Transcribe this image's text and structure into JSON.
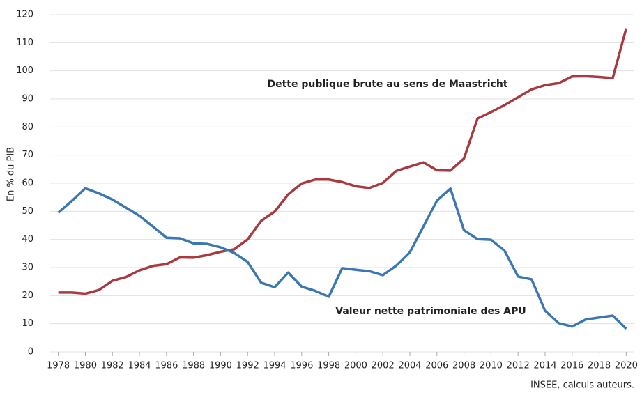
{
  "chart_data": {
    "type": "line",
    "y_label": "En % du PIB",
    "source": "INSEE, calculs auteurs.",
    "x": [
      1978,
      1979,
      1980,
      1981,
      1982,
      1983,
      1984,
      1985,
      1986,
      1987,
      1988,
      1989,
      1990,
      1991,
      1992,
      1993,
      1994,
      1995,
      1996,
      1997,
      1998,
      1999,
      2000,
      2001,
      2002,
      2003,
      2004,
      2005,
      2006,
      2007,
      2008,
      2009,
      2010,
      2011,
      2012,
      2013,
      2014,
      2015,
      2016,
      2017,
      2018,
      2019,
      2020
    ],
    "series": [
      {
        "name": "Dette publique brute au sens de Maastricht",
        "color": "#a83a3f",
        "values": [
          21.1,
          21.1,
          20.7,
          22.0,
          25.3,
          26.6,
          29.0,
          30.6,
          31.2,
          33.6,
          33.5,
          34.4,
          35.6,
          36.5,
          40.0,
          46.6,
          49.9,
          56.0,
          59.9,
          61.3,
          61.3,
          60.4,
          58.9,
          58.3,
          60.1,
          64.4,
          65.9,
          67.4,
          64.6,
          64.5,
          68.8,
          83.0,
          85.3,
          87.8,
          90.6,
          93.4,
          94.9,
          95.6,
          98.0,
          98.1,
          97.8,
          97.4,
          115.1
        ]
      },
      {
        "name": "Valeur nette patrimoniale des APU",
        "color": "#3b77b0",
        "values": [
          49.5,
          53.7,
          58.2,
          56.4,
          54.2,
          51.3,
          48.4,
          44.6,
          40.6,
          40.4,
          38.6,
          38.4,
          37.2,
          35.2,
          32.0,
          24.6,
          23.0,
          28.2,
          23.2,
          21.7,
          19.6,
          29.8,
          29.2,
          28.7,
          27.3,
          30.7,
          35.4,
          44.6,
          53.8,
          58.1,
          43.3,
          40.1,
          39.9,
          36.0,
          26.8,
          25.8,
          14.6,
          10.2,
          9.0,
          11.5,
          12.2,
          12.9,
          8.2
        ]
      }
    ],
    "xlim": [
      1977.4,
      2020.6
    ],
    "xticks": [
      1978,
      1980,
      1982,
      1984,
      1986,
      1988,
      1990,
      1992,
      1994,
      1996,
      1998,
      2000,
      2002,
      2004,
      2006,
      2008,
      2010,
      2012,
      2014,
      2016,
      2018,
      2020
    ],
    "ylim": [
      0,
      120
    ],
    "yticks": [
      0,
      10,
      20,
      30,
      40,
      50,
      60,
      70,
      80,
      90,
      100,
      110,
      120
    ],
    "grid": true
  }
}
